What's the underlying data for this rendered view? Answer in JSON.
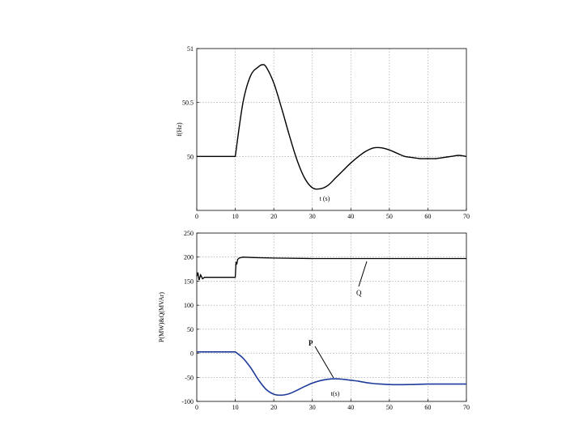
{
  "chart_data": [
    {
      "type": "line",
      "title": "",
      "xlabel": "",
      "ylabel": "f(Hz)",
      "annotation": "t (s)",
      "xlim": [
        0,
        70
      ],
      "ylim": [
        49.5,
        51
      ],
      "xticks": [
        "0",
        "10",
        "20",
        "30",
        "40",
        "50",
        "60",
        "70"
      ],
      "yticks": [
        "50",
        "50.5",
        "51"
      ],
      "grid": true,
      "series": [
        {
          "color": "#000000",
          "x": [
            0,
            10,
            12,
            14,
            16,
            17,
            18,
            20,
            22,
            24,
            26,
            28,
            30,
            32,
            34,
            36,
            38,
            40,
            42,
            44,
            46,
            48,
            50,
            52,
            54,
            56,
            58,
            60,
            62,
            64,
            66,
            68,
            70
          ],
          "y": [
            50.0,
            50.0,
            50.5,
            50.75,
            50.83,
            50.85,
            50.83,
            50.68,
            50.45,
            50.2,
            49.97,
            49.8,
            49.71,
            49.7,
            49.73,
            49.8,
            49.87,
            49.94,
            50.0,
            50.05,
            50.08,
            50.08,
            50.06,
            50.03,
            50.0,
            49.99,
            49.98,
            49.98,
            49.98,
            49.99,
            50.0,
            50.01,
            50.0
          ]
        }
      ]
    },
    {
      "type": "line",
      "title": "",
      "xlabel": "",
      "ylabel": "P(MW)&Q(MVAr)",
      "annotation": "t(s)",
      "xlim": [
        0,
        70
      ],
      "ylim": [
        -100,
        250
      ],
      "xticks": [
        "0",
        "10",
        "20",
        "30",
        "40",
        "50",
        "60",
        "70"
      ],
      "yticks": [
        "-100",
        "-50",
        "0",
        "50",
        "100",
        "150",
        "200",
        "250"
      ],
      "grid": true,
      "series": [
        {
          "name": "Q",
          "color": "#000000",
          "x": [
            0,
            0.3,
            0.6,
            1,
            1.5,
            2,
            10,
            10.2,
            10.4,
            10.6,
            11,
            12,
            15,
            20,
            30,
            40,
            50,
            60,
            70
          ],
          "y": [
            160,
            168,
            152,
            163,
            155,
            158,
            158,
            190,
            185,
            195,
            198,
            200,
            199,
            198,
            197,
            197,
            197,
            197,
            197
          ]
        },
        {
          "name": "P",
          "color": "#1f3b9a",
          "x": [
            0,
            10,
            12,
            14,
            16,
            18,
            20,
            22,
            24,
            26,
            28,
            30,
            32,
            34,
            36,
            38,
            40,
            42,
            44,
            46,
            48,
            50,
            55,
            60,
            65,
            70
          ],
          "y": [
            3,
            3,
            -10,
            -30,
            -55,
            -75,
            -85,
            -87,
            -84,
            -77,
            -69,
            -62,
            -57,
            -54,
            -53,
            -54,
            -56,
            -58,
            -61,
            -63,
            -64,
            -65,
            -65,
            -64,
            -64,
            -64
          ]
        }
      ],
      "labels": {
        "q": "Q",
        "p": "P"
      }
    }
  ]
}
